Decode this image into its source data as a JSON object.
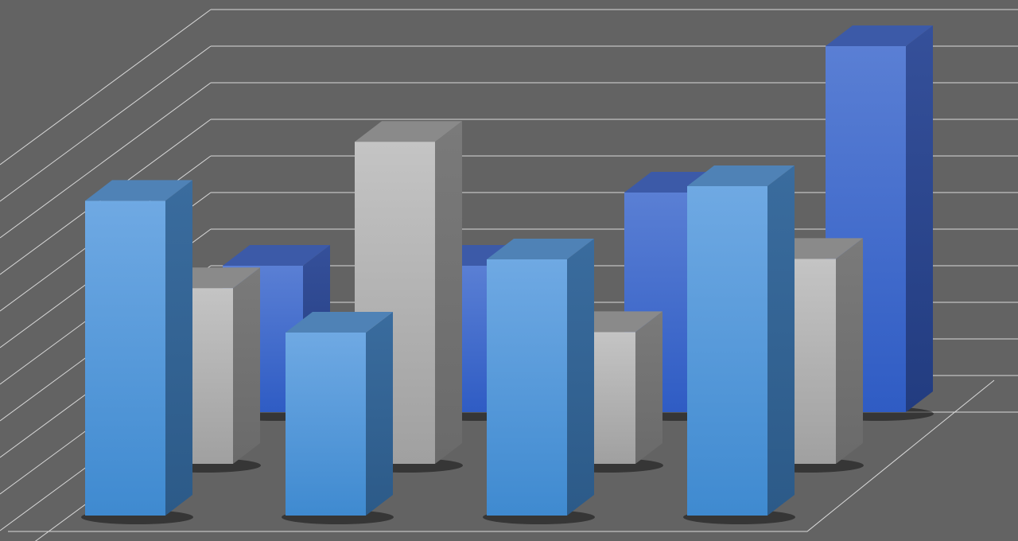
{
  "chart_data": {
    "type": "bar",
    "style": "3d-clustered-depth",
    "title": "",
    "xlabel": "",
    "ylabel": "",
    "categories": [
      "",
      "",
      "",
      ""
    ],
    "ylim": [
      0,
      11
    ],
    "grid": true,
    "legend": "none",
    "background_color": "#636363",
    "grid_color": "#d9d9d9",
    "series": [
      {
        "row": "back",
        "color": "#3d66c9",
        "values": [
          4.0,
          4.0,
          6.0,
          10.0
        ]
      },
      {
        "row": "middle",
        "color": "#b4b4b4",
        "values": [
          4.8,
          8.8,
          3.6,
          5.6
        ]
      },
      {
        "row": "front",
        "color": "#5aa0e0",
        "values": [
          8.6,
          5.0,
          7.0,
          9.0
        ]
      }
    ]
  }
}
